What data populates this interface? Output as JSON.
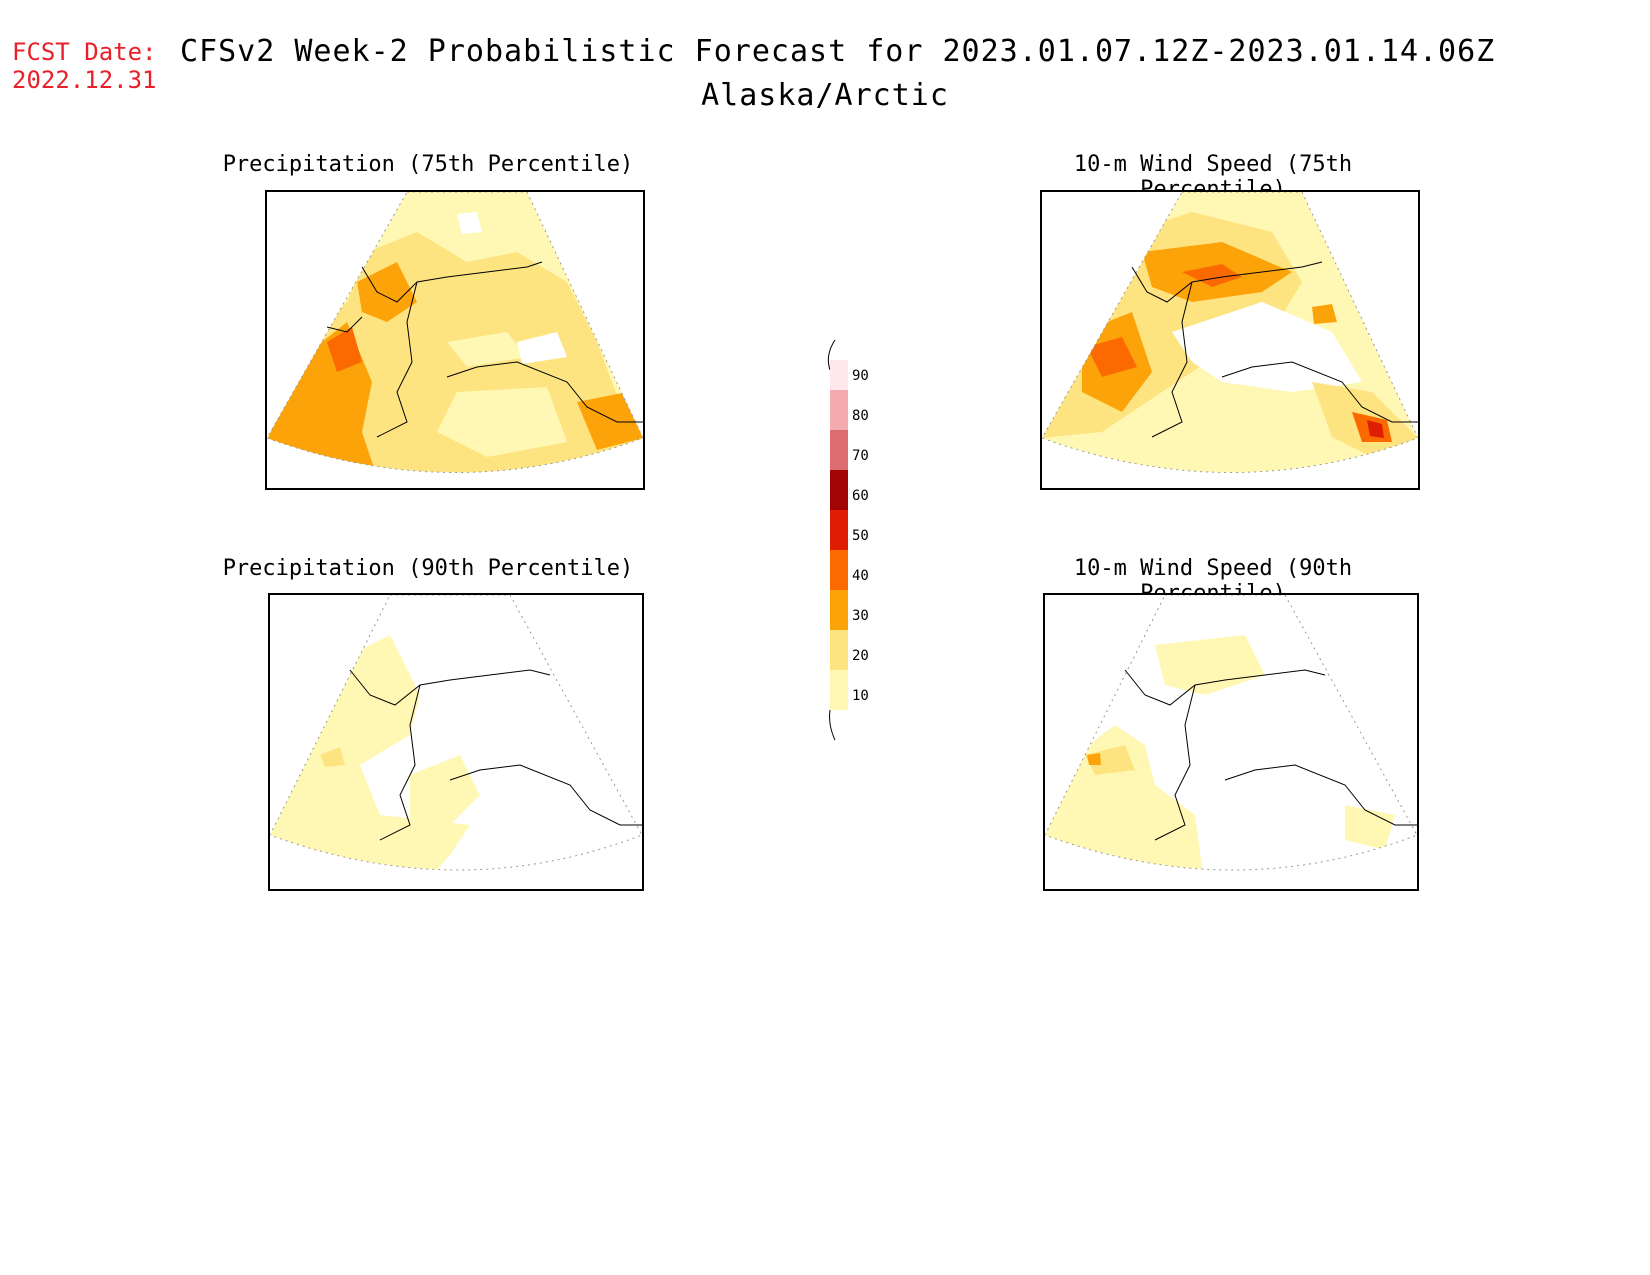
{
  "header": {
    "fcst_label": "FCST Date:",
    "fcst_date": "2022.12.31",
    "title": "CFSv2 Week-2 Probabilistic Forecast for 2023.01.07.12Z-2023.01.14.06Z",
    "subtitle": "Alaska/Arctic"
  },
  "panels": [
    {
      "id": "precip75",
      "title": "Precipitation (75th Percentile)"
    },
    {
      "id": "wind75",
      "title": "10-m Wind Speed (75th Percentile)"
    },
    {
      "id": "precip90",
      "title": "Precipitation (90th Percentile)"
    },
    {
      "id": "wind90",
      "title": "10-m Wind Speed (90th Percentile)"
    }
  ],
  "colorbar": {
    "levels": [
      "10",
      "20",
      "30",
      "40",
      "50",
      "60",
      "70",
      "80",
      "90"
    ],
    "colors": {
      "10_20": "#fff8b4",
      "20_30": "#fde481",
      "30_40": "#fda30a",
      "40_50": "#fb6a00",
      "50_60": "#de1d03",
      "60_70": "#a10404",
      "70_80": "#dc6c70",
      "80_90": "#f3abb0",
      "90_100": "#fde7ea"
    }
  }
}
